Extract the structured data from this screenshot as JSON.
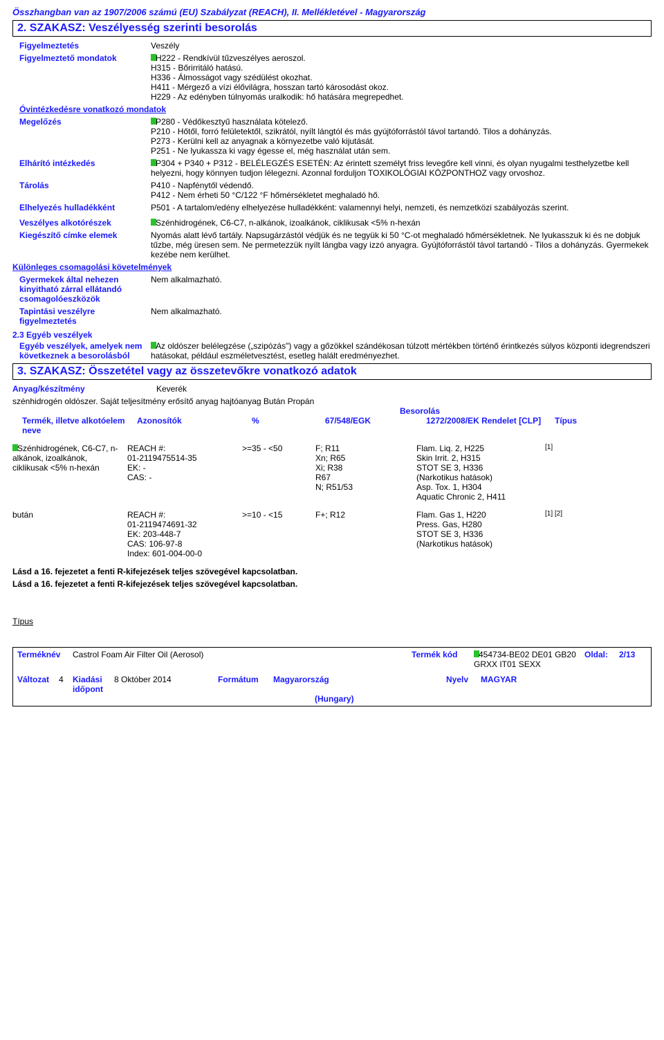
{
  "reach_header": "Összhangban van az 1907/2006 számú (EU) Szabályzat (REACH), II. Mellékletével - Magyarország",
  "section2": {
    "title": "2. SZAKASZ: Veszélyesség szerinti besorolás",
    "figyelmeztetes": {
      "label": "Figyelmeztetés",
      "value": "Veszély"
    },
    "figyelmezteto": {
      "label": "Figyelmeztető mondatok",
      "lines": {
        "h222": "H222 - Rendkívül tűzveszélyes aeroszol.",
        "h315": "H315 - Bőrirritáló hatású.",
        "h336": "H336 - Álmosságot vagy szédülést okozhat.",
        "h411": "H411 - Mérgező a vízi élővilágra, hosszan tartó károsodást okoz.",
        "h229": "H229 - Az edényben túlnyomás uralkodik: hő hatására megrepedhet."
      }
    },
    "ovintezkedes_header": "Óvintézkedésre vonatkozó mondatok",
    "megelozes": {
      "label": "Megelőzés",
      "text": "P280 - Védőkesztyű használata kötelező.\nP210 - Hőtől, forró felületektől, szikrától, nyílt lángtól és más gyújtóforrástól távol tartandó. Tilos a dohányzás.\nP273 - Kerülni kell az anyagnak a környezetbe való kijutását.\nP251 - Ne lyukassza ki vagy égesse el, még használat után sem."
    },
    "elharito": {
      "label": "Elhárító intézkedés",
      "text": "P304 + P340 + P312 - BELÉLEGZÉS ESETÉN: Az érintett személyt friss levegőre kell vinni, és olyan nyugalmi testhelyzetbe kell helyezni, hogy könnyen tudjon lélegezni. Azonnal forduljon TOXIKOLÓGIAI KÖZPONTHOZ vagy orvoshoz."
    },
    "tarolas": {
      "label": "Tárolás",
      "text": "P410 - Napfénytől védendő.\nP412 - Nem érheti 50 °C/122 °F hőmérsékletet meghaladó hő."
    },
    "elhelyezes": {
      "label": "Elhelyezés hulladékként",
      "text": "P501 - A tartalom/edény elhelyezése hulladékként: valamennyi helyi, nemzeti, és nemzetközi szabályozás szerint."
    },
    "veszelyes_alk": {
      "label": "Veszélyes alkotórészek",
      "text": "Szénhidrogének, C6-C7, n-alkánok, izoalkánok, ciklikusak  <5% n-hexán"
    },
    "kiegeszito": {
      "label": "Kiegészítő címke elemek",
      "text": "Nyomás alatt lévő tartály. Napsugárzástól védjük és ne tegyük ki 50 °C-ot meghaladó hőmérsékletnek.  Ne lyukasszuk ki és ne dobjuk tűzbe, még üresen sem.  Ne permetezzük nyílt lángba vagy izzó anyagra.  Gyújtóforrástól távol tartandó - Tilos a dohányzás.  Gyermekek kezébe nem kerülhet."
    },
    "kulonleges_header": "Különleges csomagolási követelmények",
    "gyermek": {
      "label": "Gyermekek által nehezen kinyitható zárral ellátandó csomagolóeszközök",
      "value": "Nem alkalmazható."
    },
    "tapintasi": {
      "label": "Tapintási veszélyre figyelmeztetés",
      "value": "Nem alkalmazható."
    },
    "s23_header": "2.3 Egyéb veszélyek",
    "egyeb": {
      "label": "Egyéb veszélyek, amelyek nem következnek a besorolásból",
      "text": "Az oldószer belélegzése („szipózás\") vagy a gőzökkel szándékosan túlzott mértékben történő érintkezés súlyos központi idegrendszeri hatásokat, például eszméletvesztést, esetleg halált eredményezhet."
    }
  },
  "section3": {
    "title": "3. SZAKASZ: Összetétel vagy az összetevőkre vonatkozó adatok",
    "anyag": {
      "label": "Anyag/készítmény",
      "value": "Keverék"
    },
    "desc": "szénhidrogén oldószer. Saját teljesítmény erősítő anyag hajtóanyag Bután Propán",
    "besorolas": "Besorolás",
    "headers": {
      "name": "Termék, illetve alkotóelem neve",
      "id": "Azonosítók",
      "pct": "%",
      "ec": "67/548/EGK",
      "clp": "1272/2008/EK Rendelet [CLP]",
      "type": "Típus"
    },
    "rows": [
      {
        "name": "Szénhidrogének, C6-C7, n-alkánok, izoalkánok, ciklikusak  <5% n-hexán",
        "id": "REACH #:\n01-2119475514-35\nEK: -\nCAS: -",
        "pct": ">=35 - <50",
        "ec": "F; R11\nXn; R65\nXi; R38\nR67\nN; R51/53",
        "clp": "Flam. Liq. 2, H225\nSkin Irrit. 2, H315\nSTOT SE 3, H336\n(Narkotikus hatások)\nAsp. Tox. 1, H304\nAquatic Chronic 2, H411",
        "type": "[1]",
        "flag": true
      },
      {
        "name": "bután",
        "id": "REACH #:\n01-2119474691-32\nEK: 203-448-7\nCAS: 106-97-8\nIndex: 601-004-00-0",
        "pct": ">=10 - <15",
        "ec": "F+; R12",
        "clp": "Flam. Gas 1, H220\nPress. Gas, H280\nSTOT SE 3, H336\n(Narkotikus hatások)",
        "type": "[1] [2]",
        "flag": false
      }
    ],
    "note1": "Lásd a 16. fejezetet a fenti R-kifejezések teljes szövegével kapcsolatban.",
    "note2": "Lásd a 16. fejezetet a fenti R-kifejezések teljes szövegével kapcsolatban.",
    "tipus": "Típus"
  },
  "footer": {
    "termeknev_lbl": "Terméknév",
    "termeknev_val": "Castrol Foam Air Filter Oil (Aerosol)",
    "termekkod_lbl": "Termék kód",
    "termekkod_val": "454734-BE02 DE01 GB20 GRXX IT01 SEXX",
    "oldal_lbl": "Oldal:",
    "oldal_val": "2/13",
    "valtozat_lbl": "Változat",
    "valtozat_val": "4",
    "kiadasi_lbl": "Kiadási időpont",
    "kiadasi_val": "8 Október 2014",
    "formatum_lbl": "Formátum",
    "formatum_val": "Magyarország",
    "hungary": "(Hungary)",
    "nyelv_lbl": "Nyelv",
    "nyelv_val": "MAGYAR"
  }
}
